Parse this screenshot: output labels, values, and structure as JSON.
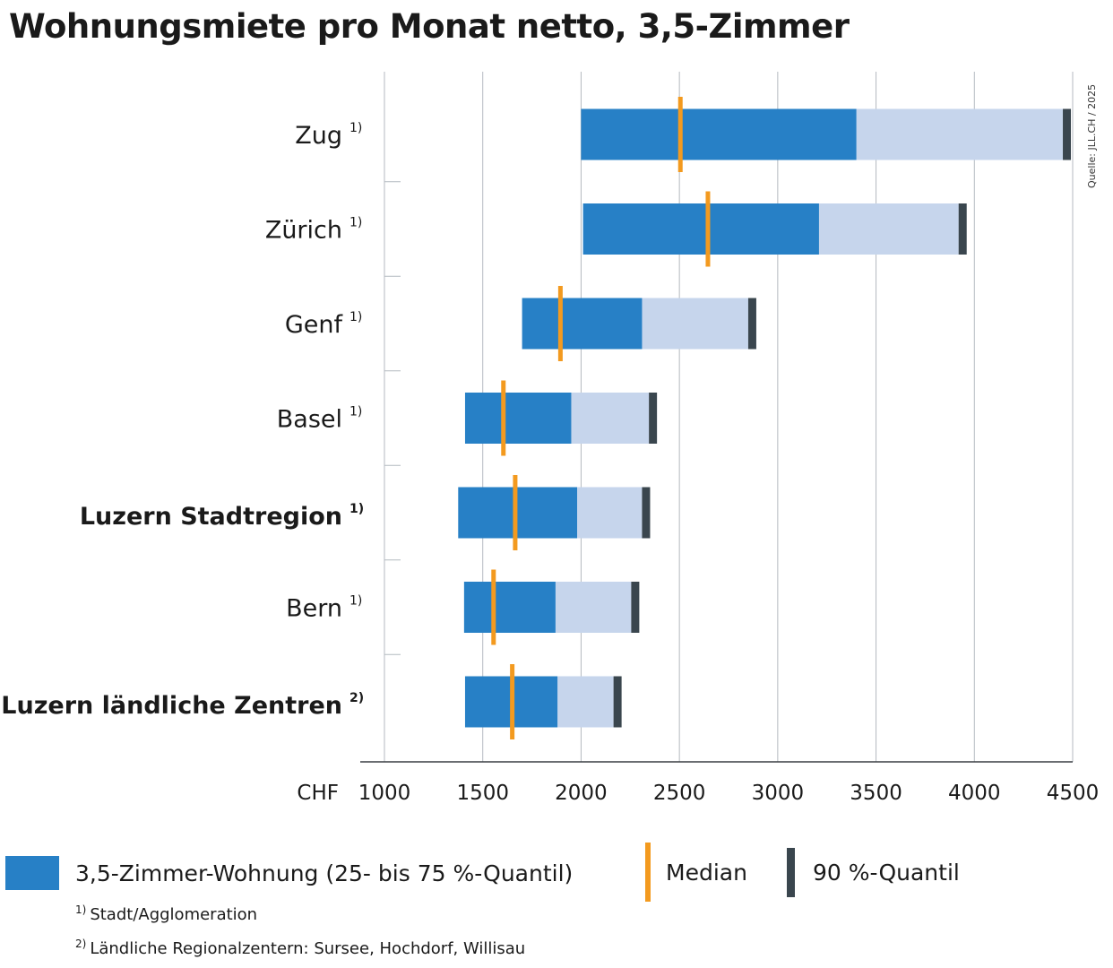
{
  "title": "Wohnungsmiete pro Monat netto, 3,5-Zimmer",
  "source": "Quelle: JLL.CH / 2025",
  "chart_data": {
    "type": "bar",
    "orientation": "horizontal",
    "xlabel": "CHF",
    "xlim": [
      1000,
      4500
    ],
    "xticks": [
      1000,
      1500,
      2000,
      2500,
      3000,
      3500,
      4000,
      4500
    ],
    "grid": true,
    "categories": [
      {
        "label": "Zug",
        "note": "1)",
        "bold": false,
        "q25": 2000,
        "q75": 3400,
        "q90": 4450,
        "median": 2505
      },
      {
        "label": "Zürich",
        "note": "1)",
        "bold": false,
        "q25": 2010,
        "q75": 3210,
        "q90": 3920,
        "median": 2645
      },
      {
        "label": "Genf",
        "note": "1)",
        "bold": false,
        "q25": 1700,
        "q75": 2310,
        "q90": 2850,
        "median": 1895
      },
      {
        "label": "Basel",
        "note": "1)",
        "bold": false,
        "q25": 1410,
        "q75": 1950,
        "q90": 2345,
        "median": 1605
      },
      {
        "label": "Luzern Stadtregion",
        "note": "1)",
        "bold": true,
        "q25": 1375,
        "q75": 1980,
        "q90": 2310,
        "median": 1665
      },
      {
        "label": "Bern",
        "note": "1)",
        "bold": false,
        "q25": 1405,
        "q75": 1870,
        "q90": 2255,
        "median": 1555
      },
      {
        "label": "Luzern ländliche Zentren",
        "note": "2)",
        "bold": true,
        "q25": 1410,
        "q75": 1880,
        "q90": 2165,
        "median": 1650
      }
    ],
    "colors": {
      "iqr": "#2780c6",
      "upper": "#c6d5ec",
      "median": "#f39a1f",
      "q90": "#3a464e",
      "grid": "#b4bac0"
    }
  },
  "legend": {
    "iqr": "3,5-Zimmer-Wohnung (25- bis 75 %-Quantil)",
    "median": "Median",
    "q90": "90 %-Quantil"
  },
  "footnotes": {
    "n1_mark": "1)",
    "n1_text": "Stadt/Agglomeration",
    "n2_mark": "2)",
    "n2_text": "Ländliche Regionalzentern: Sursee, Hochdorf, Willisau"
  }
}
